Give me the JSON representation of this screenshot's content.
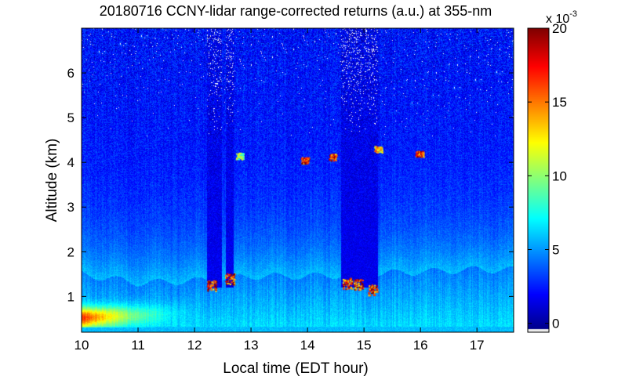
{
  "chart_data": {
    "type": "heatmap",
    "title": "20180716 CCNY-lidar range-corrected returns (a.u.) at 355-nm",
    "xlabel": "Local time (EDT hour)",
    "ylabel": "Altitude (km)",
    "xlim": [
      10,
      17.65
    ],
    "ylim": [
      0.2,
      7.0
    ],
    "x_ticks": [
      "10",
      "11",
      "12",
      "13",
      "14",
      "15",
      "16",
      "17"
    ],
    "x_tick_values": [
      10,
      11,
      12,
      13,
      14,
      15,
      16,
      17
    ],
    "y_ticks": [
      "1",
      "2",
      "3",
      "4",
      "5",
      "6"
    ],
    "y_tick_values": [
      1,
      2,
      3,
      4,
      5,
      6
    ],
    "colorbar": {
      "colormap": "jet",
      "range": [
        -0.6,
        20
      ],
      "ticks": [
        "0",
        "5",
        "10",
        "15",
        "20"
      ],
      "tick_values": [
        0,
        5,
        10,
        15,
        20
      ],
      "multiplier": "x 10",
      "exponent": "-3"
    },
    "features": {
      "boundary_layer_top_km": [
        {
          "time": 10.0,
          "altitude": 1.5
        },
        {
          "time": 11.0,
          "altitude": 1.3
        },
        {
          "time": 12.0,
          "altitude": 1.35
        },
        {
          "time": 13.0,
          "altitude": 1.45
        },
        {
          "time": 14.0,
          "altitude": 1.45
        },
        {
          "time": 15.0,
          "altitude": 1.5
        },
        {
          "time": 16.0,
          "altitude": 1.55
        },
        {
          "time": 17.0,
          "altitude": 1.6
        }
      ],
      "surface_aerosol_layer": {
        "time_start": 10.0,
        "time_end": 12.3,
        "altitude_low": 0.3,
        "altitude_high": 1.0,
        "value_peak": 0.019
      },
      "cloud_gaps": [
        {
          "time_start": 12.22,
          "time_end": 12.48
        },
        {
          "time_start": 12.55,
          "time_end": 12.7
        },
        {
          "time_start": 14.6,
          "time_end": 15.25
        }
      ],
      "cloud_returns_low_km": [
        {
          "time": 12.3,
          "altitude": 1.25,
          "value": 0.02
        },
        {
          "time": 12.62,
          "altitude": 1.4,
          "value": 0.02
        },
        {
          "time": 14.7,
          "altitude": 1.3,
          "value": 0.02
        },
        {
          "time": 14.9,
          "altitude": 1.28,
          "value": 0.02
        },
        {
          "time": 15.15,
          "altitude": 1.15,
          "value": 0.02
        }
      ],
      "cloud_returns_high_km": [
        {
          "time": 12.8,
          "altitude": 4.15,
          "value": 0.012
        },
        {
          "time": 13.95,
          "altitude": 4.05,
          "value": 0.02
        },
        {
          "time": 14.45,
          "altitude": 4.12,
          "value": 0.02
        },
        {
          "time": 15.25,
          "altitude": 4.3,
          "value": 0.015
        },
        {
          "time": 15.98,
          "altitude": 4.2,
          "value": 0.02
        }
      ]
    }
  }
}
